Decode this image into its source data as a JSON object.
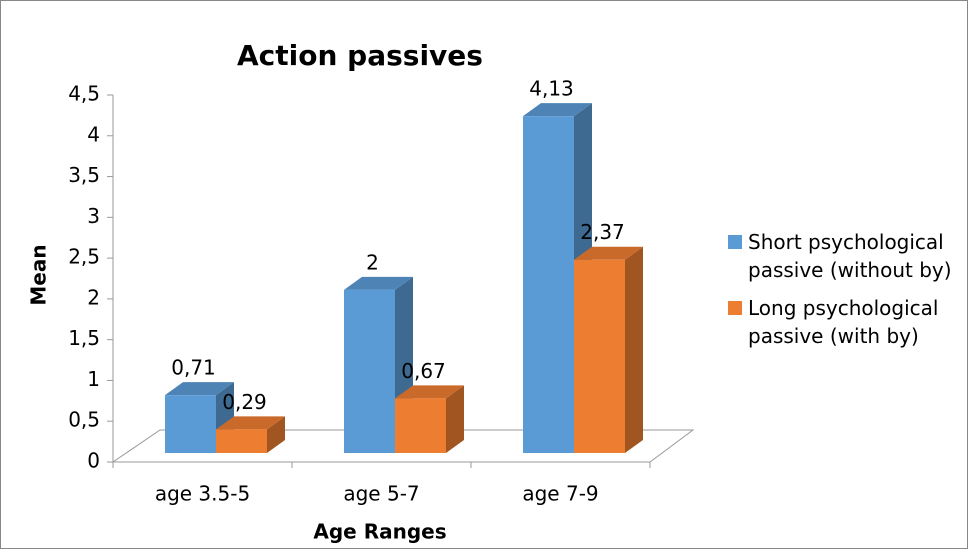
{
  "chart_data": {
    "type": "bar3d",
    "title": "Action passives",
    "x_label": "Age Ranges",
    "y_label": "Mean",
    "categories": [
      "age 3.5-5",
      "age 5-7",
      "age 7-9"
    ],
    "series": [
      {
        "name": "Short psychological passive (without by)",
        "color": "#5b9bd5",
        "values": [
          0.71,
          2,
          4.13
        ],
        "value_labels": [
          "0,71",
          "2",
          "4,13"
        ]
      },
      {
        "name": "Long psychological passive (with by)",
        "color": "#ed7d31",
        "values": [
          0.29,
          0.67,
          2.37
        ],
        "value_labels": [
          "0,29",
          "0,67",
          "2,37"
        ]
      }
    ],
    "ylim": [
      0,
      4.5
    ],
    "yticks": [
      0,
      {
        "value": 0.5,
        "label": "0,5"
      },
      1,
      {
        "value": 1.5,
        "label": "1,5"
      },
      2,
      {
        "value": 2.5,
        "label": "2,5"
      },
      3,
      {
        "value": 3.5,
        "label": "3,5"
      },
      4,
      {
        "value": 4.5,
        "label": "4,5"
      }
    ],
    "legend": "right"
  }
}
